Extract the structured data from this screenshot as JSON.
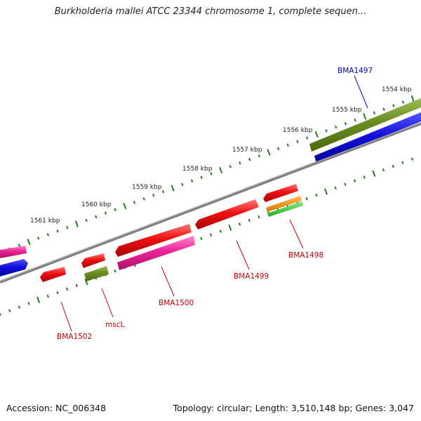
{
  "title": "Burkholderia mallei ATCC 23344 chromosome 1, complete sequen...",
  "accession": "Accession: NC_006348",
  "topology": "Topology: circular; Length: 3,510,148 bp; Genes: 3,047",
  "tick_labels": [
    "1554 kbp",
    "1555 kbp",
    "1556 kbp",
    "1557 kbp",
    "1558 kbp",
    "1559 kbp",
    "1560 kbp",
    "1561 kbp"
  ],
  "gene_labels": {
    "bma1497": "BMA1497",
    "bma1498": "BMA1498",
    "bma1499": "BMA1499",
    "bma1500": "BMA1500",
    "mscl": "mscL",
    "bma1502": "BMA1502"
  },
  "colors": {
    "forward_label": "#0000cc",
    "reverse_label": "#cc0000",
    "red": "#ee1111",
    "pink": "#ee2299",
    "olive": "#6b8e23",
    "blue": "#1111dd",
    "orange": "#ff8c00",
    "green": "#33cc33",
    "backbone": "#808080",
    "ticks": "#227722"
  }
}
